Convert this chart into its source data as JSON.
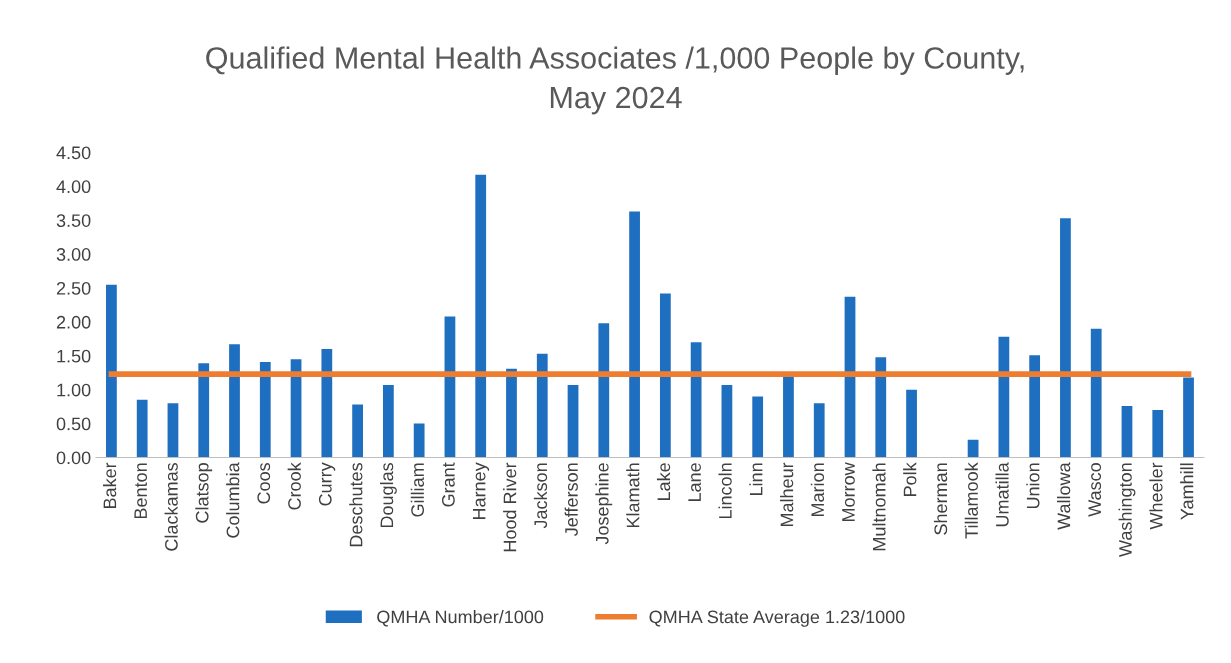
{
  "chart_data": {
    "type": "bar",
    "title": "Qualified Mental Health Associates /1,000 People by County,\nMay 2024",
    "categories": [
      "Baker",
      "Benton",
      "Clackamas",
      "Clatsop",
      "Columbia",
      "Coos",
      "Crook",
      "Curry",
      "Deschutes",
      "Douglas",
      "Gilliam",
      "Grant",
      "Harney",
      "Hood River",
      "Jackson",
      "Jefferson",
      "Josephine",
      "Klamath",
      "Lake",
      "Lane",
      "Lincoln",
      "Linn",
      "Malheur",
      "Marion",
      "Morrow",
      "Multnomah",
      "Polk",
      "Sherman",
      "Tillamook",
      "Umatilla",
      "Union",
      "Wallowa",
      "Wasco",
      "Washington",
      "Wheeler",
      "Yamhill"
    ],
    "series": [
      {
        "name": "QMHA Number/1000",
        "color": "#1f6fc0",
        "values": [
          2.55,
          0.85,
          0.8,
          1.39,
          1.67,
          1.41,
          1.45,
          1.6,
          0.78,
          1.07,
          0.5,
          2.08,
          4.17,
          1.31,
          1.53,
          1.07,
          1.98,
          3.63,
          2.42,
          1.7,
          1.07,
          0.9,
          1.2,
          0.8,
          2.37,
          1.48,
          1.0,
          0,
          0.26,
          1.78,
          1.51,
          3.53,
          1.9,
          0.76,
          0.7,
          1.18
        ]
      },
      {
        "name": "QMHA State Average 1.23/1000",
        "type": "line",
        "color": "#ed7d31",
        "values": [
          1.23,
          1.23,
          1.23,
          1.23,
          1.23,
          1.23,
          1.23,
          1.23,
          1.23,
          1.23,
          1.23,
          1.23,
          1.23,
          1.23,
          1.23,
          1.23,
          1.23,
          1.23,
          1.23,
          1.23,
          1.23,
          1.23,
          1.23,
          1.23,
          1.23,
          1.23,
          1.23,
          1.23,
          1.23,
          1.23,
          1.23,
          1.23,
          1.23,
          1.23,
          1.23,
          1.23
        ]
      }
    ],
    "ylim": [
      0,
      4.5
    ],
    "yticks": [
      {
        "value": 0,
        "label": "0.00"
      },
      {
        "value": 0.5,
        "label": "0.50"
      },
      {
        "value": 1,
        "label": "1.00"
      },
      {
        "value": 1.5,
        "label": "1.50"
      },
      {
        "value": 2,
        "label": "2.00"
      },
      {
        "value": 2.5,
        "label": "2.50"
      },
      {
        "value": 3,
        "label": "3.00"
      },
      {
        "value": 3.5,
        "label": "3.50"
      },
      {
        "value": 4,
        "label": "4.00"
      },
      {
        "value": 4.5,
        "label": "4.50"
      }
    ],
    "grid": false,
    "legend": "bottom",
    "marker": "none",
    "line_style": "solid"
  }
}
